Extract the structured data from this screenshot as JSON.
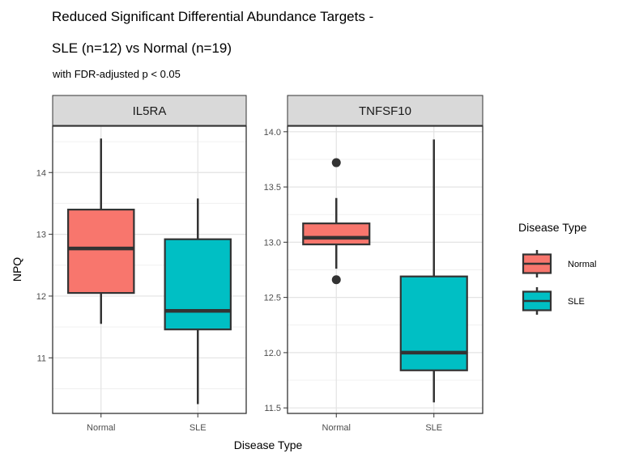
{
  "title_line1": "Reduced Significant Differential Abundance Targets -",
  "title_line2": "SLE (n=12) vs Normal (n=19)",
  "subtitle": "with FDR-adjusted p < 0.05",
  "xlabel": "Disease Type",
  "ylabel": "NPQ",
  "legend": {
    "title": "Disease Type",
    "placement": "right",
    "items": [
      {
        "label": "Normal",
        "color": "#F8766D"
      },
      {
        "label": "SLE",
        "color": "#00BFC4"
      }
    ]
  },
  "chart_data": [
    {
      "type": "box",
      "facet": "IL5RA",
      "categories": [
        "Normal",
        "SLE"
      ],
      "ylim": [
        10.1,
        14.75
      ],
      "yticks": [
        11,
        12,
        13,
        14
      ],
      "boxes": [
        {
          "category": "Normal",
          "whisker_low": 11.55,
          "q1": 12.05,
          "median": 12.77,
          "q3": 13.4,
          "whisker_high": 14.55,
          "outliers": []
        },
        {
          "category": "SLE",
          "whisker_low": 10.25,
          "q1": 11.46,
          "median": 11.76,
          "q3": 12.92,
          "whisker_high": 13.58,
          "outliers": []
        }
      ]
    },
    {
      "type": "box",
      "facet": "TNFSF10",
      "categories": [
        "Normal",
        "SLE"
      ],
      "ylim": [
        11.45,
        14.05
      ],
      "yticks": [
        11.5,
        12.0,
        12.5,
        13.0,
        13.5,
        14.0
      ],
      "ytick_labels": [
        "11.5",
        "12.0",
        "12.5",
        "13.0",
        "13.5",
        "14.0"
      ],
      "boxes": [
        {
          "category": "Normal",
          "whisker_low": 12.76,
          "q1": 12.98,
          "median": 13.04,
          "q3": 13.17,
          "whisker_high": 13.4,
          "outliers": [
            13.72,
            12.66
          ]
        },
        {
          "category": "SLE",
          "whisker_low": 11.55,
          "q1": 11.84,
          "median": 12.0,
          "q3": 12.69,
          "whisker_high": 13.93,
          "outliers": []
        }
      ]
    }
  ]
}
